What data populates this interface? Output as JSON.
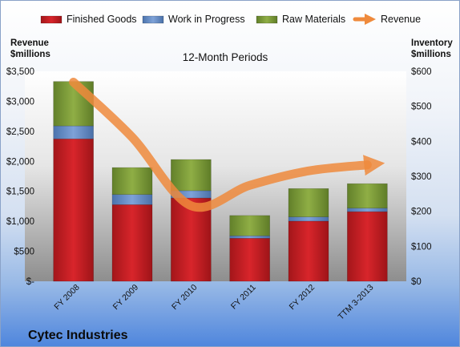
{
  "chart_data": {
    "type": "bar",
    "stacked": true,
    "title": "12-Month Periods",
    "company": "Cytec Industries",
    "categories": [
      "FY 2008",
      "FY 2009",
      "FY 2010",
      "FY 2011",
      "FY 2012",
      "TTM 3-2013"
    ],
    "series": [
      {
        "name": "Finished Goods",
        "axis": "right",
        "color": "#cc1f24",
        "values": [
          407,
          219,
          238,
          123,
          172,
          199
        ]
      },
      {
        "name": "Work in Progress",
        "axis": "right",
        "color": "#5b86c5",
        "values": [
          37,
          29,
          21,
          7,
          12,
          10
        ]
      },
      {
        "name": "Raw Materials",
        "axis": "right",
        "color": "#7a9a33",
        "values": [
          127,
          77,
          89,
          58,
          81,
          70
        ]
      },
      {
        "name": "Revenue",
        "axis": "left",
        "type": "line",
        "color": "#ef8a3c",
        "values": [
          3320,
          2400,
          1260,
          1600,
          1840,
          1940
        ]
      }
    ],
    "left_axis": {
      "label_line1": "Revenue",
      "label_line2": "$millions",
      "min": 0,
      "max": 3500,
      "step": 500,
      "ticks": [
        "$-",
        "$500",
        "$1,000",
        "$1,500",
        "$2,000",
        "$2,500",
        "$3,000",
        "$3,500"
      ]
    },
    "right_axis": {
      "label_line1": "Inventory",
      "label_line2": "$millions",
      "min": 0,
      "max": 600,
      "step": 100,
      "ticks": [
        "$0",
        "$100",
        "$200",
        "$300",
        "$400",
        "$500",
        "$600"
      ]
    },
    "legend_position": "top",
    "grid": false
  }
}
